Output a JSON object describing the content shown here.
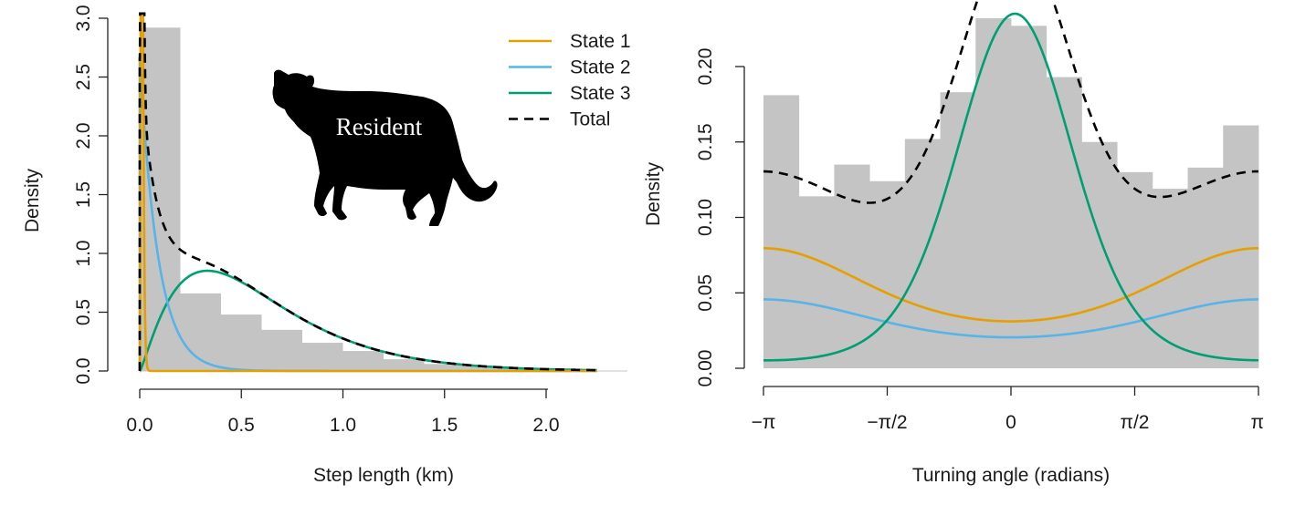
{
  "chart_data": [
    {
      "type": "histogram",
      "xlabel": "Step length (km)",
      "ylabel": "Density",
      "xlim": [
        0,
        2.4
      ],
      "ylim": [
        0,
        3.0
      ],
      "xticks": [
        "0.0",
        "0.5",
        "1.0",
        "1.5",
        "2.0"
      ],
      "xtick_values": [
        0,
        0.5,
        1.0,
        1.5,
        2.0
      ],
      "yticks": [
        "0.0",
        "0.5",
        "1.0",
        "1.5",
        "2.0",
        "2.5",
        "3.0"
      ],
      "ytick_values": [
        0,
        0.5,
        1.0,
        1.5,
        2.0,
        2.5,
        3.0
      ],
      "bin_edges": [
        0,
        0.2,
        0.4,
        0.6,
        0.8,
        1.0,
        1.2,
        1.4,
        1.6,
        1.8,
        2.0,
        2.2,
        2.4
      ],
      "bin_density": [
        2.92,
        0.66,
        0.48,
        0.35,
        0.24,
        0.17,
        0.1,
        0.06,
        0.04,
        0.02,
        0.01,
        0.0
      ],
      "legend": {
        "placement": "top-right",
        "entries": [
          {
            "label": "State 1",
            "color": "#e69f00",
            "style": "solid"
          },
          {
            "label": "State 2",
            "color": "#56b4e9",
            "style": "solid"
          },
          {
            "label": "State 3",
            "color": "#009e73",
            "style": "solid"
          },
          {
            "label": "Total",
            "color": "#000000",
            "style": "dashed"
          }
        ]
      },
      "series": [
        {
          "name": "State 1",
          "color": "#e69f00",
          "distribution": "gamma",
          "mean": 0.012,
          "sd": 0.006,
          "weight": 0.08,
          "x_max": 2.25
        },
        {
          "name": "State 2",
          "color": "#56b4e9",
          "distribution": "gamma",
          "mean": 0.09,
          "sd": 0.09,
          "weight": 0.24,
          "x_max": 2.25
        },
        {
          "name": "State 3",
          "color": "#009e73",
          "distribution": "gamma",
          "mean": 0.6,
          "sd": 0.4,
          "weight": 0.68,
          "x_max": 2.25
        },
        {
          "name": "Total",
          "color": "#000000",
          "dashed": true,
          "x_max": 2.25
        }
      ],
      "annotation": {
        "label": "Resident",
        "icon": "leopard-silhouette-icon"
      }
    },
    {
      "type": "histogram",
      "xlabel": "Turning angle (radians)",
      "ylabel": "Density",
      "xlim": [
        -3.14159,
        3.14159
      ],
      "ylim": [
        0,
        0.23
      ],
      "xticks": [
        "−π",
        "−π/2",
        "0",
        "π/2",
        "π"
      ],
      "xtick_values": [
        -3.14159,
        -1.5708,
        0,
        1.5708,
        3.14159
      ],
      "yticks": [
        "0.00",
        "0.05",
        "0.10",
        "0.15",
        "0.20"
      ],
      "ytick_values": [
        0,
        0.05,
        0.1,
        0.15,
        0.2
      ],
      "bin_density": [
        0.181,
        0.114,
        0.135,
        0.124,
        0.152,
        0.183,
        0.232,
        0.227,
        0.193,
        0.15,
        0.13,
        0.119,
        0.133,
        0.161
      ],
      "series": [
        {
          "name": "State 1",
          "color": "#e69f00",
          "distribution": "von_mises",
          "mu": 3.14159,
          "kappa": 0.47,
          "weight": 0.33
        },
        {
          "name": "State 2",
          "color": "#56b4e9",
          "distribution": "von_mises",
          "mu": 3.14159,
          "kappa": 0.4,
          "weight": 0.2
        },
        {
          "name": "State 3",
          "color": "#009e73",
          "distribution": "von_mises",
          "mu": 0.05,
          "kappa": 1.9,
          "weight": 0.47
        },
        {
          "name": "Total",
          "color": "#000000",
          "dashed": true
        }
      ]
    }
  ]
}
